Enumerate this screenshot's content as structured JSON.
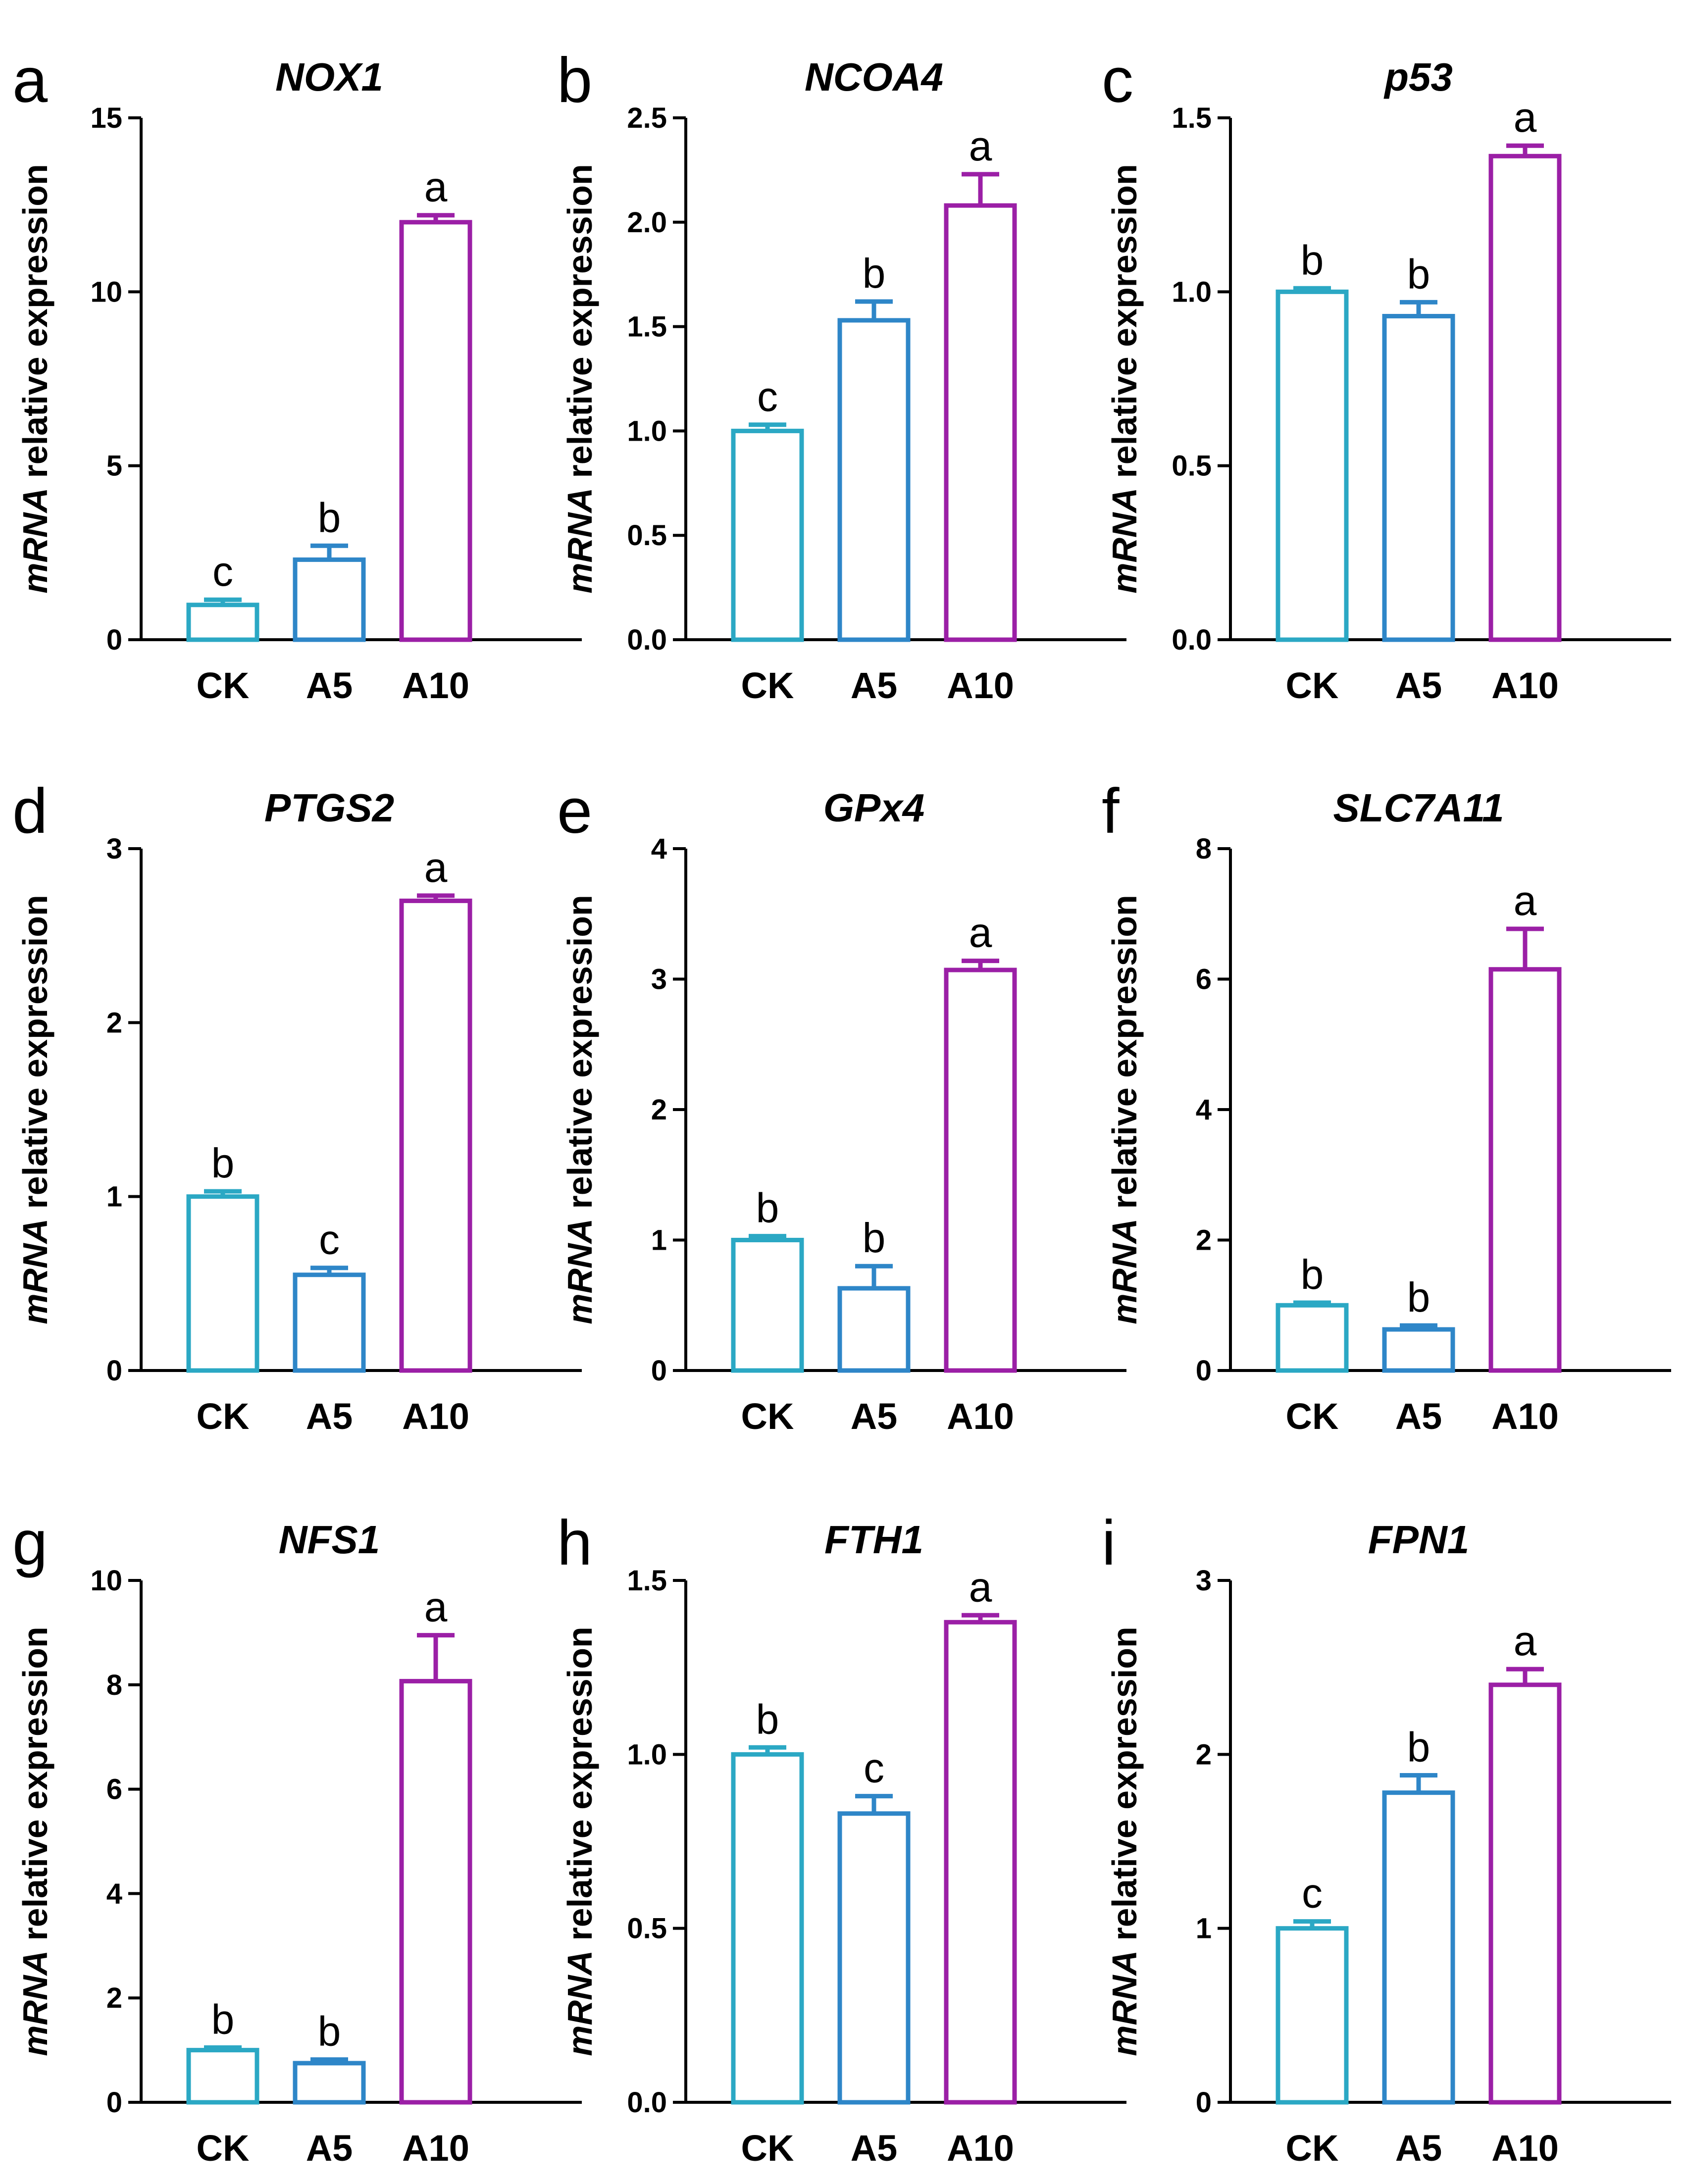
{
  "colors": {
    "CK": "#2BA8C4",
    "A5": "#2E86C8",
    "A10": "#9B1FA6"
  },
  "y_axis_label": {
    "italic_part": "mRNA",
    "rest": " relative expression"
  },
  "chart_data": [
    {
      "panel": "a",
      "title": "NOX1",
      "type": "bar",
      "categories": [
        "CK",
        "A5",
        "A10"
      ],
      "values": [
        1.0,
        2.3,
        12.0
      ],
      "errors": [
        0.15,
        0.4,
        0.2
      ],
      "sig": [
        "c",
        "b",
        "a"
      ],
      "ylim": [
        0,
        15
      ],
      "yticks": [
        0,
        5,
        10,
        15
      ],
      "ytick_labels": [
        "0",
        "5",
        "10",
        "15"
      ]
    },
    {
      "panel": "b",
      "title": "NCOA4",
      "type": "bar",
      "categories": [
        "CK",
        "A5",
        "A10"
      ],
      "values": [
        1.0,
        1.53,
        2.08
      ],
      "errors": [
        0.03,
        0.09,
        0.15
      ],
      "sig": [
        "c",
        "b",
        "a"
      ],
      "ylim": [
        0,
        2.5
      ],
      "yticks": [
        0,
        0.5,
        1.0,
        1.5,
        2.0,
        2.5
      ],
      "ytick_labels": [
        "0.0",
        "0.5",
        "1.0",
        "1.5",
        "2.0",
        "2.5"
      ]
    },
    {
      "panel": "c",
      "title": "p53",
      "type": "bar",
      "categories": [
        "CK",
        "A5",
        "A10"
      ],
      "values": [
        1.0,
        0.93,
        1.39
      ],
      "errors": [
        0.01,
        0.04,
        0.03
      ],
      "sig": [
        "b",
        "b",
        "a"
      ],
      "ylim": [
        0,
        1.5
      ],
      "yticks": [
        0,
        0.5,
        1.0,
        1.5
      ],
      "ytick_labels": [
        "0.0",
        "0.5",
        "1.0",
        "1.5"
      ]
    },
    {
      "panel": "d",
      "title": "PTGS2",
      "type": "bar",
      "categories": [
        "CK",
        "A5",
        "A10"
      ],
      "values": [
        1.0,
        0.55,
        2.7
      ],
      "errors": [
        0.03,
        0.04,
        0.03
      ],
      "sig": [
        "b",
        "c",
        "a"
      ],
      "ylim": [
        0,
        3
      ],
      "yticks": [
        0,
        1,
        2,
        3
      ],
      "ytick_labels": [
        "0",
        "1",
        "2",
        "3"
      ]
    },
    {
      "panel": "e",
      "title": "GPx4",
      "type": "bar",
      "categories": [
        "CK",
        "A5",
        "A10"
      ],
      "values": [
        1.0,
        0.63,
        3.07
      ],
      "errors": [
        0.03,
        0.17,
        0.07
      ],
      "sig": [
        "b",
        "b",
        "a"
      ],
      "ylim": [
        0,
        4
      ],
      "yticks": [
        0,
        1,
        2,
        3,
        4
      ],
      "ytick_labels": [
        "0",
        "1",
        "2",
        "3",
        "4"
      ]
    },
    {
      "panel": "f",
      "title": "SLC7A11",
      "type": "bar",
      "categories": [
        "CK",
        "A5",
        "A10"
      ],
      "values": [
        1.0,
        0.63,
        6.15
      ],
      "errors": [
        0.04,
        0.06,
        0.62
      ],
      "sig": [
        "b",
        "b",
        "a"
      ],
      "ylim": [
        0,
        8
      ],
      "yticks": [
        0,
        2,
        4,
        6,
        8
      ],
      "ytick_labels": [
        "0",
        "2",
        "4",
        "6",
        "8"
      ]
    },
    {
      "panel": "g",
      "title": "NFS1",
      "type": "bar",
      "categories": [
        "CK",
        "A5",
        "A10"
      ],
      "values": [
        1.0,
        0.75,
        8.07
      ],
      "errors": [
        0.05,
        0.07,
        0.88
      ],
      "sig": [
        "b",
        "b",
        "a"
      ],
      "ylim": [
        0,
        10
      ],
      "yticks": [
        0,
        2,
        4,
        6,
        8,
        10
      ],
      "ytick_labels": [
        "0",
        "2",
        "4",
        "6",
        "8",
        "10"
      ]
    },
    {
      "panel": "h",
      "title": "FTH1",
      "type": "bar",
      "categories": [
        "CK",
        "A5",
        "A10"
      ],
      "values": [
        1.0,
        0.83,
        1.38
      ],
      "errors": [
        0.02,
        0.05,
        0.02
      ],
      "sig": [
        "b",
        "c",
        "a"
      ],
      "ylim": [
        0,
        1.5
      ],
      "yticks": [
        0,
        0.5,
        1.0,
        1.5
      ],
      "ytick_labels": [
        "0.0",
        "0.5",
        "1.0",
        "1.5"
      ]
    },
    {
      "panel": "i",
      "title": "FPN1",
      "type": "bar",
      "categories": [
        "CK",
        "A5",
        "A10"
      ],
      "values": [
        1.0,
        1.78,
        2.4
      ],
      "errors": [
        0.04,
        0.1,
        0.09
      ],
      "sig": [
        "c",
        "b",
        "a"
      ],
      "ylim": [
        0,
        3
      ],
      "yticks": [
        0,
        1,
        2,
        3
      ],
      "ytick_labels": [
        "0",
        "1",
        "2",
        "3"
      ]
    }
  ]
}
